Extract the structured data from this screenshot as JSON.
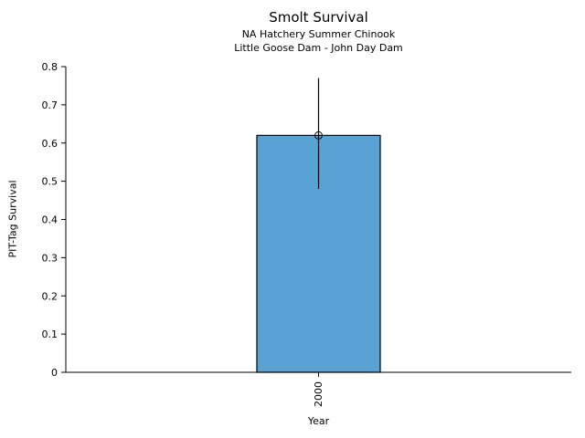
{
  "chart_data": {
    "type": "bar",
    "title": "Smolt Survival",
    "subtitle": [
      "NA Hatchery Summer Chinook",
      "Little Goose Dam - John Day Dam"
    ],
    "xlabel": "Year",
    "ylabel": "PIT-Tag Survival",
    "categories": [
      "2000"
    ],
    "values": [
      0.62
    ],
    "error_low": [
      0.48
    ],
    "error_high": [
      0.77
    ],
    "marker_values": [
      0.62
    ],
    "ylim": [
      0,
      0.8
    ],
    "ytick_labels": [
      "0",
      "0.1",
      "0.2",
      "0.3",
      "0.4",
      "0.5",
      "0.6",
      "0.7",
      "0.8"
    ],
    "bar_color": "#58a3d4",
    "bar_edge_color": "#000000",
    "error_color": "#000000",
    "marker_style": "open-circle",
    "grid": false,
    "legend": false
  }
}
